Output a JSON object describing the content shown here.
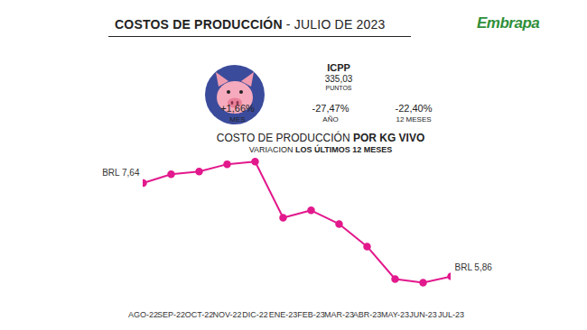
{
  "header": {
    "title": "COSTOS DE PRODUCCIÓN",
    "date": "- JULIO DE 2023",
    "logo": "Embrapa"
  },
  "icpp": {
    "name": "ICPP",
    "value": "335,03",
    "unit": "PUNTOS",
    "changes": [
      {
        "value": "+1,66%",
        "period": "MES"
      },
      {
        "value": "-27,47%",
        "period": "AÑO"
      },
      {
        "value": "-22,40%",
        "period": "12 MESES"
      }
    ]
  },
  "chart_data": {
    "type": "line",
    "title": "COSTO DE PRODUCCIÓN POR KG VIVO",
    "subtitle": "VARIACION LOS ÚLTIMOS 12 MESES",
    "categories": [
      "AGO-22",
      "SEP-22",
      "OCT-22",
      "NOV-22",
      "DIC-22",
      "ENE-23",
      "FEB-23",
      "MAR-23",
      "ABR-23",
      "MAY-23",
      "JUN-23",
      "JUL-23"
    ],
    "values": [
      7.64,
      7.81,
      7.86,
      8.0,
      8.05,
      6.98,
      7.12,
      6.86,
      6.43,
      5.81,
      5.74,
      5.86
    ],
    "value_labels": [
      "BRL 7,64",
      null,
      null,
      null,
      null,
      null,
      null,
      null,
      null,
      null,
      null,
      "BRL 5,86"
    ],
    "data_labels": true,
    "color": "#e2198c",
    "marker": "circle",
    "line_style": "solid",
    "ylim": [
      5.5,
      8.2
    ],
    "yticks": [],
    "tick_labels": "x"
  }
}
